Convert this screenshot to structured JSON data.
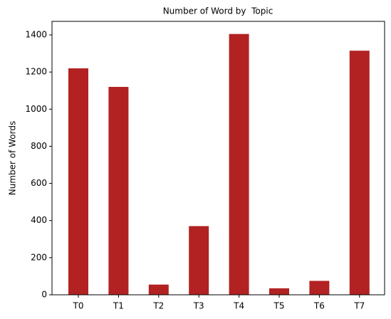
{
  "chart_data": {
    "type": "bar",
    "title": "Number of Word by  Topic",
    "y_label": "Number of Words",
    "categories": [
      "T0",
      "T1",
      "T2",
      "T3",
      "T4",
      "T5",
      "T6",
      "T7"
    ],
    "values": [
      1220,
      1120,
      55,
      370,
      1405,
      35,
      75,
      1315
    ],
    "color": "#b22222",
    "ylim": [
      0,
      1473
    ],
    "yticks": [
      0,
      200,
      400,
      600,
      800,
      1000,
      1200,
      1400
    ],
    "grid": false
  }
}
